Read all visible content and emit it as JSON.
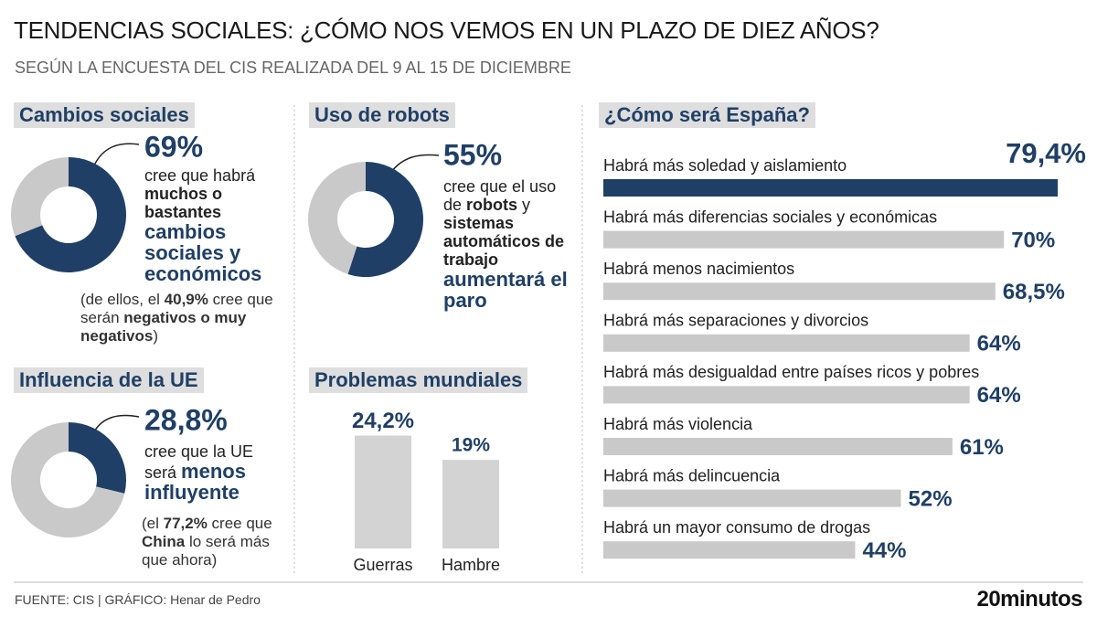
{
  "title": "TENDENCIAS SOCIALES: ¿CÓMO NOS VEMOS EN UN PLAZO DE DIEZ AÑOS?",
  "subtitle": "SEGÚN LA ENCUESTA DEL CIS REALIZADA DEL 9 AL 15 DE DICIEMBRE",
  "footer": {
    "source": "FUENTE: CIS  |  GRÁFICO: Henar de Pedro",
    "logo": "20minutos"
  },
  "chart_data": [
    {
      "type": "donut",
      "title": "Cambios sociales",
      "values": [
        69,
        31
      ],
      "value_labels": [
        "69%",
        null
      ],
      "colors": [
        "#1f3f66",
        "#c9c9c9"
      ],
      "text": [
        "cree que habrá",
        "muchos o bastantes",
        "cambios sociales y económicos"
      ],
      "note": [
        "(de ellos, el ",
        "40,9%",
        " cree que serán ",
        "negativos o muy negativos",
        ")"
      ]
    },
    {
      "type": "donut",
      "title": "Uso de robots",
      "values": [
        55,
        45
      ],
      "value_labels": [
        "55%",
        null
      ],
      "colors": [
        "#1f3f66",
        "#c9c9c9"
      ],
      "text": [
        "cree que el uso de ",
        "robots",
        " y ",
        "sistemas automáticos de trabajo",
        "aumentará el paro"
      ]
    },
    {
      "type": "donut",
      "title": "Influencia de la UE",
      "values": [
        28.8,
        71.2
      ],
      "value_labels": [
        "28,8%",
        null
      ],
      "colors": [
        "#1f3f66",
        "#c9c9c9"
      ],
      "text": [
        "cree que la UE será ",
        "menos influyente"
      ],
      "note": [
        "(el ",
        "77,2%",
        " cree que ",
        "China",
        " lo será más que ahora)"
      ]
    },
    {
      "type": "bar",
      "title": "Problemas mundiales",
      "categories": [
        "Guerras",
        "Hambre"
      ],
      "values": [
        24.2,
        19
      ],
      "value_labels": [
        "24,2%",
        "19%"
      ],
      "color": "#d3d3d3"
    },
    {
      "type": "barh",
      "title": "¿Cómo será España?",
      "categories": [
        "Habrá más soledad y aislamiento",
        "Habrá más diferencias sociales y económicas",
        "Habrá menos nacimientos",
        "Habrá más separaciones y divorcios",
        "Habrá más desigualdad entre países ricos y pobres",
        "Habrá más violencia",
        "Habrá más delincuencia",
        "Habrá un mayor consumo de drogas"
      ],
      "values": [
        79.4,
        70,
        68.5,
        64,
        64,
        61,
        52,
        44
      ],
      "value_labels": [
        "79,4%",
        "70%",
        "68,5%",
        "64%",
        "64%",
        "61%",
        "52%",
        "44%"
      ],
      "colors": [
        "#1f3f66",
        "#c9c9c9",
        "#c9c9c9",
        "#c9c9c9",
        "#c9c9c9",
        "#c9c9c9",
        "#c9c9c9",
        "#c9c9c9"
      ]
    }
  ]
}
